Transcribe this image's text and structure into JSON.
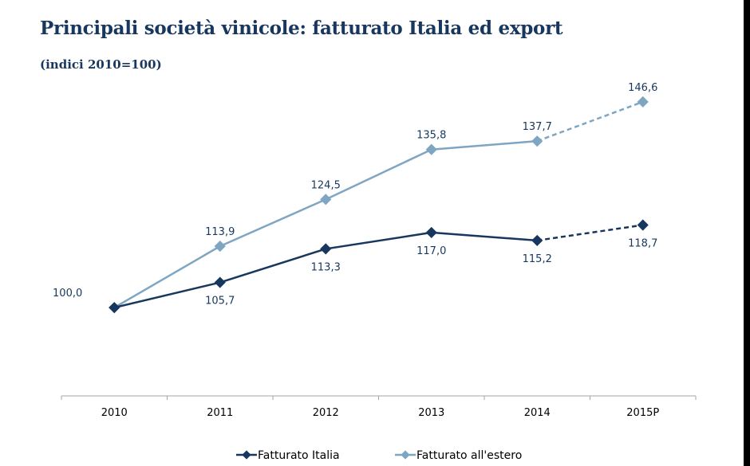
{
  "header": {
    "title": "Principali società vinicole: fatturato Italia ed export",
    "subtitle": "(indici 2010=100)"
  },
  "chart_data": {
    "type": "line",
    "title": "Principali società vinicole: fatturato Italia ed export",
    "subtitle": "(indici 2010=100)",
    "categories": [
      "2010",
      "2011",
      "2012",
      "2013",
      "2014",
      "2015P"
    ],
    "ylim": [
      80,
      150
    ],
    "grid": false,
    "legend_position": "bottom",
    "projected_from_index": 4,
    "series": [
      {
        "name": "Fatturato Italia",
        "values": [
          100.0,
          105.7,
          113.3,
          117.0,
          115.2,
          118.7
        ],
        "labels": [
          "",
          "105,7",
          "113,3",
          "117,0",
          "115,2",
          "118,7"
        ],
        "label_side": [
          "",
          "below",
          "below",
          "below",
          "below",
          "below"
        ],
        "color": "#17375e"
      },
      {
        "name": "Fatturato all'estero",
        "values": [
          100.0,
          113.9,
          124.5,
          135.8,
          137.7,
          146.6
        ],
        "labels": [
          "100,0",
          "113,9",
          "124,5",
          "135,8",
          "137,7",
          "146,6"
        ],
        "label_side": [
          "left",
          "above",
          "above",
          "above",
          "above",
          "above"
        ],
        "color": "#7ea6c3"
      }
    ]
  }
}
